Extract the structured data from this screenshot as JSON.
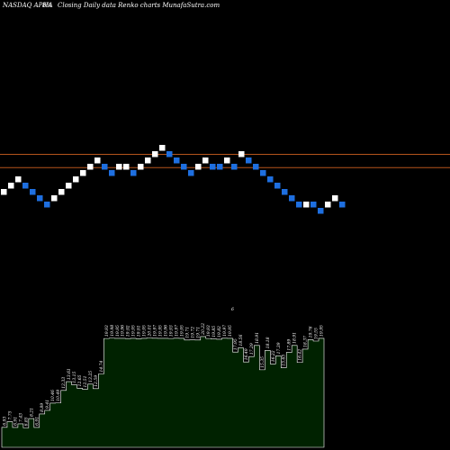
{
  "header": {
    "ticker": "NASDAQ APHA",
    "change": "8%",
    "title": "Closing Daily data  Renko  charts MunafaSutra.com"
  },
  "colors": {
    "background": "#000000",
    "brick_up": "#ffffff",
    "brick_down": "#1e6fe0",
    "reference_line": "#b5541c",
    "volume_fill": "#002200",
    "volume_edge": "#ffffff"
  },
  "chart_data": [
    {
      "type": "renko",
      "title": "Closing Daily data  Renko  charts MunafaSutra.com",
      "bricks": [
        "up",
        "up",
        "up",
        "down",
        "down",
        "down",
        "down",
        "up",
        "up",
        "up",
        "up",
        "up",
        "up",
        "up",
        "down",
        "down",
        "up",
        "up",
        "down",
        "up",
        "up",
        "up",
        "up",
        "down",
        "down",
        "down",
        "down",
        "up",
        "up",
        "down",
        "down",
        "up",
        "down",
        "up",
        "down",
        "down",
        "down",
        "down",
        "down",
        "down",
        "down",
        "down",
        "up",
        "down",
        "down",
        "up",
        "up",
        "down"
      ],
      "brick_levels": [
        0,
        1,
        2,
        1,
        0,
        -1,
        -2,
        -1,
        0,
        1,
        2,
        3,
        4,
        5,
        4,
        3,
        4,
        4,
        3,
        4,
        5,
        6,
        7,
        6,
        5,
        4,
        3,
        4,
        5,
        4,
        4,
        5,
        4,
        6,
        5,
        4,
        3,
        2,
        1,
        0,
        -1,
        -2,
        -2,
        -2,
        -3,
        -2,
        -1,
        -2
      ],
      "reference_levels": [
        6.5,
        4.4
      ],
      "grid": false
    },
    {
      "type": "area",
      "series": [
        {
          "labels": [
            "6.93",
            "7.75",
            "6.91",
            "7.43",
            "6.85",
            "8.21",
            "6.91",
            "8.89",
            "9.41",
            "10.46",
            "10.49",
            "12.33",
            "13.61",
            "13.15",
            "12.65",
            "12.51",
            "13.25",
            "12.59",
            "14.74",
            "19.93",
            "19.98",
            "19.95",
            "19.96",
            "19.92",
            "19.95",
            "19.91",
            "19.95",
            "20.01",
            "19.97",
            "19.95",
            "19.96",
            "19.93",
            "19.97",
            "19.95",
            "19.71",
            "19.72",
            "19.71",
            "20.22",
            "19.93",
            "19.85",
            "19.82",
            "19.97",
            "19.95",
            "17.95",
            "18.56",
            "16.49",
            "17.29",
            "18.91",
            "15.35",
            "18.18",
            "16.22",
            "17.39",
            "15.65",
            "17.89",
            "18.91",
            "16.42",
            "18.37",
            "19.76",
            "19.55",
            "19.95"
          ],
          "values": [
            6.93,
            7.75,
            6.91,
            7.43,
            6.85,
            8.21,
            6.91,
            8.89,
            9.41,
            10.46,
            10.49,
            12.33,
            13.61,
            13.15,
            12.65,
            12.51,
            13.25,
            12.59,
            14.74,
            19.93,
            19.98,
            19.95,
            19.96,
            19.92,
            19.95,
            19.91,
            19.95,
            20.01,
            19.97,
            19.95,
            19.96,
            19.93,
            19.97,
            19.95,
            19.71,
            19.72,
            19.71,
            20.22,
            19.93,
            19.85,
            19.82,
            19.97,
            19.95,
            17.95,
            18.56,
            16.49,
            17.29,
            18.91,
            15.35,
            18.18,
            16.22,
            17.39,
            15.65,
            17.89,
            18.91,
            16.42,
            18.37,
            19.76,
            19.55,
            19.95
          ]
        }
      ],
      "peak_marker": "6"
    }
  ]
}
